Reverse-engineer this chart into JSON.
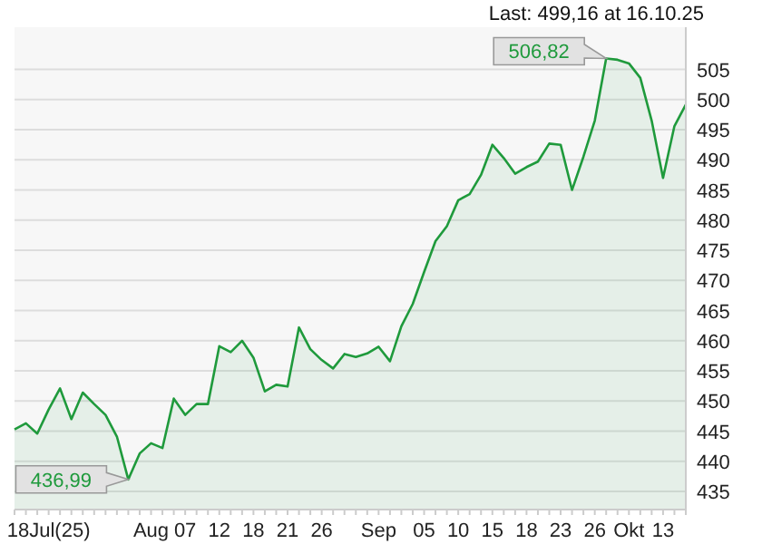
{
  "chart_data": {
    "type": "area",
    "subtitle": "Last: 499,16 at 16.10.25",
    "categories": [
      null,
      null,
      null,
      "18Jul(25)",
      null,
      null,
      null,
      null,
      null,
      null,
      null,
      null,
      "Aug",
      null,
      null,
      "07",
      null,
      null,
      "12",
      null,
      null,
      "18",
      null,
      null,
      "21",
      null,
      null,
      "26",
      null,
      null,
      null,
      null,
      "Sep",
      null,
      null,
      null,
      "05",
      null,
      null,
      "10",
      null,
      null,
      "15",
      null,
      null,
      "18",
      null,
      null,
      "23",
      null,
      null,
      "26",
      null,
      null,
      "Okt",
      null,
      null,
      "13",
      null,
      null
    ],
    "series": [
      {
        "color": "#1f9a3c",
        "values": [
          445.3,
          446.3,
          444.6,
          448.6,
          452.1,
          447.0,
          451.4,
          449.5,
          447.7,
          444.1,
          436.99,
          441.3,
          443.0,
          442.2,
          450.4,
          447.7,
          449.5,
          449.5,
          459.1,
          458.1,
          460.0,
          457.2,
          451.6,
          452.7,
          452.4,
          462.2,
          458.6,
          456.8,
          455.4,
          457.8,
          457.3,
          457.9,
          459.0,
          456.6,
          462.4,
          466.1,
          471.4,
          476.5,
          479.0,
          483.3,
          484.3,
          487.5,
          492.5,
          490.3,
          487.7,
          488.8,
          489.7,
          492.7,
          492.5,
          485.0,
          490.5,
          496.5,
          506.82,
          506.6,
          506.0,
          503.6,
          496.5,
          487.0,
          495.6,
          499.16
        ]
      }
    ],
    "ylim": [
      432,
      512
    ],
    "yticks": [
      435,
      440,
      445,
      450,
      455,
      460,
      465,
      470,
      475,
      480,
      485,
      490,
      495,
      500,
      505
    ],
    "grid": "y",
    "annotations": [
      "506,82",
      "436,99"
    ]
  }
}
